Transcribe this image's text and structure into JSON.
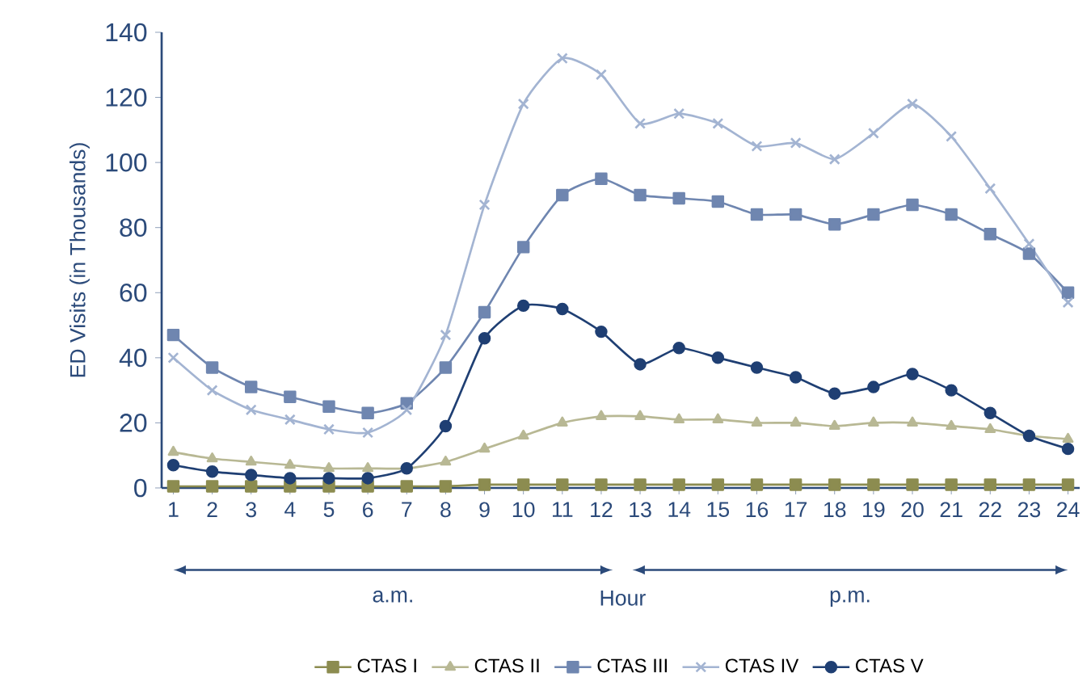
{
  "chart_data": {
    "type": "line",
    "ylabel": "ED Visits (in Thousands)",
    "categories": [
      "1",
      "2",
      "3",
      "4",
      "5",
      "6",
      "7",
      "8",
      "9",
      "10",
      "11",
      "12",
      "13",
      "14",
      "15",
      "16",
      "17",
      "18",
      "19",
      "20",
      "21",
      "22",
      "23",
      "24"
    ],
    "series": [
      {
        "name": "CTAS I",
        "color": "#8c8c50",
        "marker": "square",
        "values": [
          0.5,
          0.5,
          0.5,
          0.5,
          0.5,
          0.5,
          0.5,
          0.5,
          1,
          1,
          1,
          1,
          1,
          1,
          1,
          1,
          1,
          1,
          1,
          1,
          1,
          1,
          1,
          1
        ]
      },
      {
        "name": "CTAS II",
        "color": "#b8b894",
        "marker": "triangle",
        "values": [
          11,
          9,
          8,
          7,
          6,
          6,
          6,
          8,
          12,
          16,
          20,
          22,
          22,
          21,
          21,
          20,
          20,
          19,
          20,
          20,
          19,
          18,
          16,
          15
        ]
      },
      {
        "name": "CTAS III",
        "color": "#6f86b0",
        "marker": "square",
        "values": [
          47,
          37,
          31,
          28,
          25,
          23,
          26,
          37,
          54,
          74,
          90,
          95,
          90,
          89,
          88,
          84,
          84,
          81,
          84,
          87,
          84,
          78,
          72,
          60
        ]
      },
      {
        "name": "CTAS IV",
        "color": "#a3b4d2",
        "marker": "cross",
        "values": [
          40,
          30,
          24,
          21,
          18,
          17,
          24,
          47,
          87,
          118,
          132,
          127,
          112,
          115,
          112,
          105,
          106,
          101,
          109,
          118,
          108,
          92,
          75,
          57
        ]
      },
      {
        "name": "CTAS V",
        "color": "#1f3f73",
        "marker": "circle",
        "values": [
          7,
          5,
          4,
          3,
          3,
          3,
          6,
          19,
          46,
          56,
          55,
          48,
          38,
          43,
          40,
          37,
          34,
          29,
          31,
          35,
          30,
          23,
          16,
          12
        ]
      }
    ],
    "ylim": [
      0,
      140
    ],
    "yticks": [
      0,
      20,
      40,
      60,
      80,
      100,
      120,
      140
    ],
    "annotations": [
      "a.m.",
      "Hour",
      "p.m."
    ],
    "legend": "bottom",
    "grid": false,
    "line_style": "solid"
  }
}
